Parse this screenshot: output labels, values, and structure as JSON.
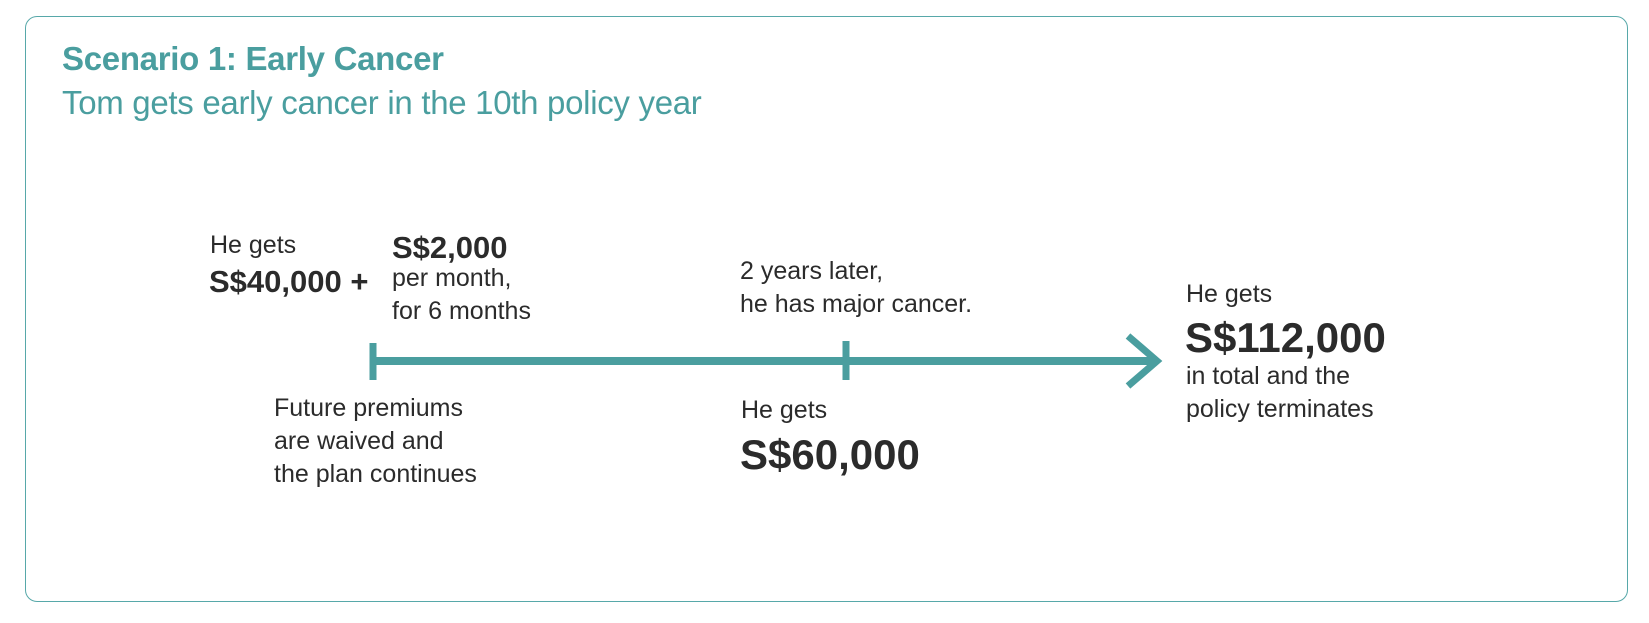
{
  "heading": {
    "title": "Scenario 1: Early Cancer",
    "subtitle": "Tom gets early cancer in the 10th policy year"
  },
  "first_event": {
    "lead": "He gets",
    "lump_sum": "S$40,000 +",
    "monthly_amount": "S$2,000",
    "monthly_line1": "per month,",
    "monthly_line2": "for 6 months",
    "below_line1": "Future premiums",
    "below_line2": "are waived and",
    "below_line3": "the plan continues"
  },
  "second_event": {
    "above_line1": "2 years later,",
    "above_line2": "he has major cancer.",
    "lead": "He gets",
    "amount": "S$60,000"
  },
  "outcome": {
    "lead": "He gets",
    "amount": "S$112,000",
    "line1": "in total and the",
    "line2": "policy terminates"
  },
  "colors": {
    "accent": "#4a9e9f",
    "text": "#2b2b2b",
    "border": "#57a8a9"
  }
}
